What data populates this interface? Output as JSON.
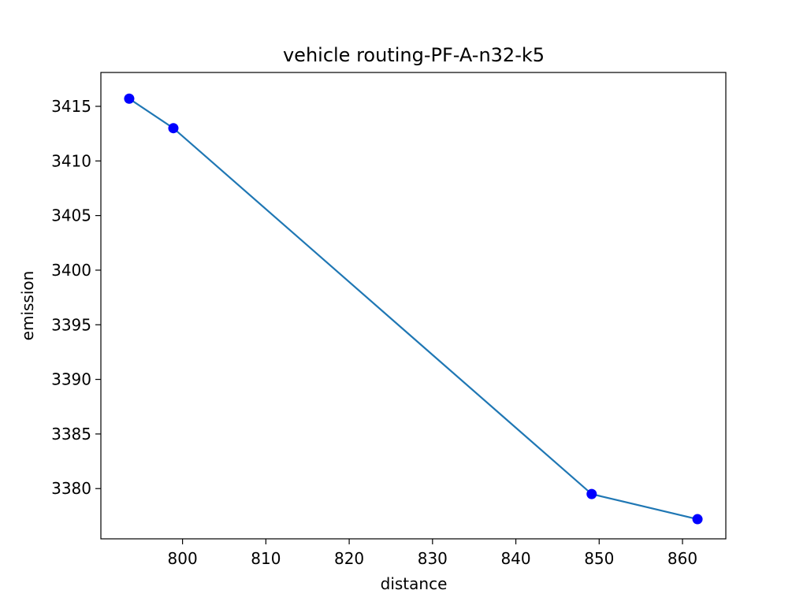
{
  "chart_data": {
    "type": "line",
    "title": "vehicle routing-PF-A-n32-k5",
    "xlabel": "distance",
    "ylabel": "emission",
    "xlim": [
      790.2,
      865.2
    ],
    "ylim": [
      3375.4,
      3418.1
    ],
    "xticks": [
      800,
      810,
      820,
      830,
      840,
      850,
      860
    ],
    "yticks": [
      3380,
      3385,
      3390,
      3395,
      3400,
      3405,
      3410,
      3415
    ],
    "grid": false,
    "legend": "none",
    "series": [
      {
        "x": [
          793.6,
          798.9,
          849.1,
          861.8
        ],
        "y": [
          3415.7,
          3413.0,
          3379.5,
          3377.2
        ],
        "line_color": "#1f77b4",
        "marker_color": "#0000ff"
      }
    ]
  }
}
